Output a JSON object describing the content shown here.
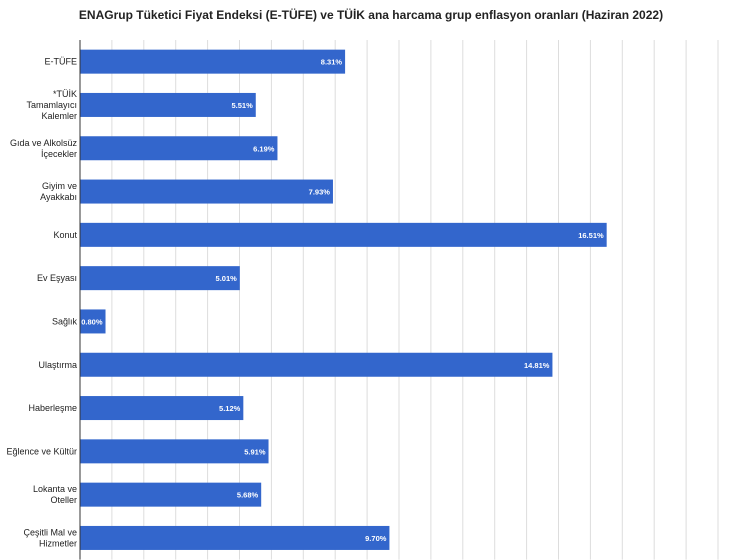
{
  "chart_data": {
    "type": "bar",
    "orientation": "horizontal",
    "title": "ENAGrup Tüketici Fiyat Endeksi (E-TÜFE) ve TÜİK ana harcama grup enflasyon oranları (Haziran 2022)",
    "categories": [
      [
        "E-TÜFE"
      ],
      [
        "*TÜİK",
        "Tamamlayıcı",
        "Kalemler"
      ],
      [
        "Gıda ve Alkolsüz",
        "İçecekler"
      ],
      [
        "Giyim ve",
        "Ayakkabı"
      ],
      [
        "Konut"
      ],
      [
        "Ev Eşyası"
      ],
      [
        "Sağlık"
      ],
      [
        "Ulaştırma"
      ],
      [
        "Haberleşme"
      ],
      [
        "Eğlence ve Kültür"
      ],
      [
        "Lokanta ve",
        "Oteller"
      ],
      [
        "Çeşitli Mal ve",
        "Hizmetler"
      ]
    ],
    "values": [
      8.31,
      5.51,
      6.19,
      7.93,
      16.51,
      5.01,
      0.8,
      14.81,
      5.12,
      5.91,
      5.68,
      9.7
    ],
    "value_labels": [
      "8.31%",
      "5.51%",
      "6.19%",
      "7.93%",
      "16.51%",
      "5.01%",
      "0.80%",
      "14.81%",
      "5.12%",
      "5.91%",
      "5.68%",
      "9.70%"
    ],
    "xlim": [
      0,
      20
    ],
    "grid": true,
    "bar_color": "#3366cc"
  }
}
